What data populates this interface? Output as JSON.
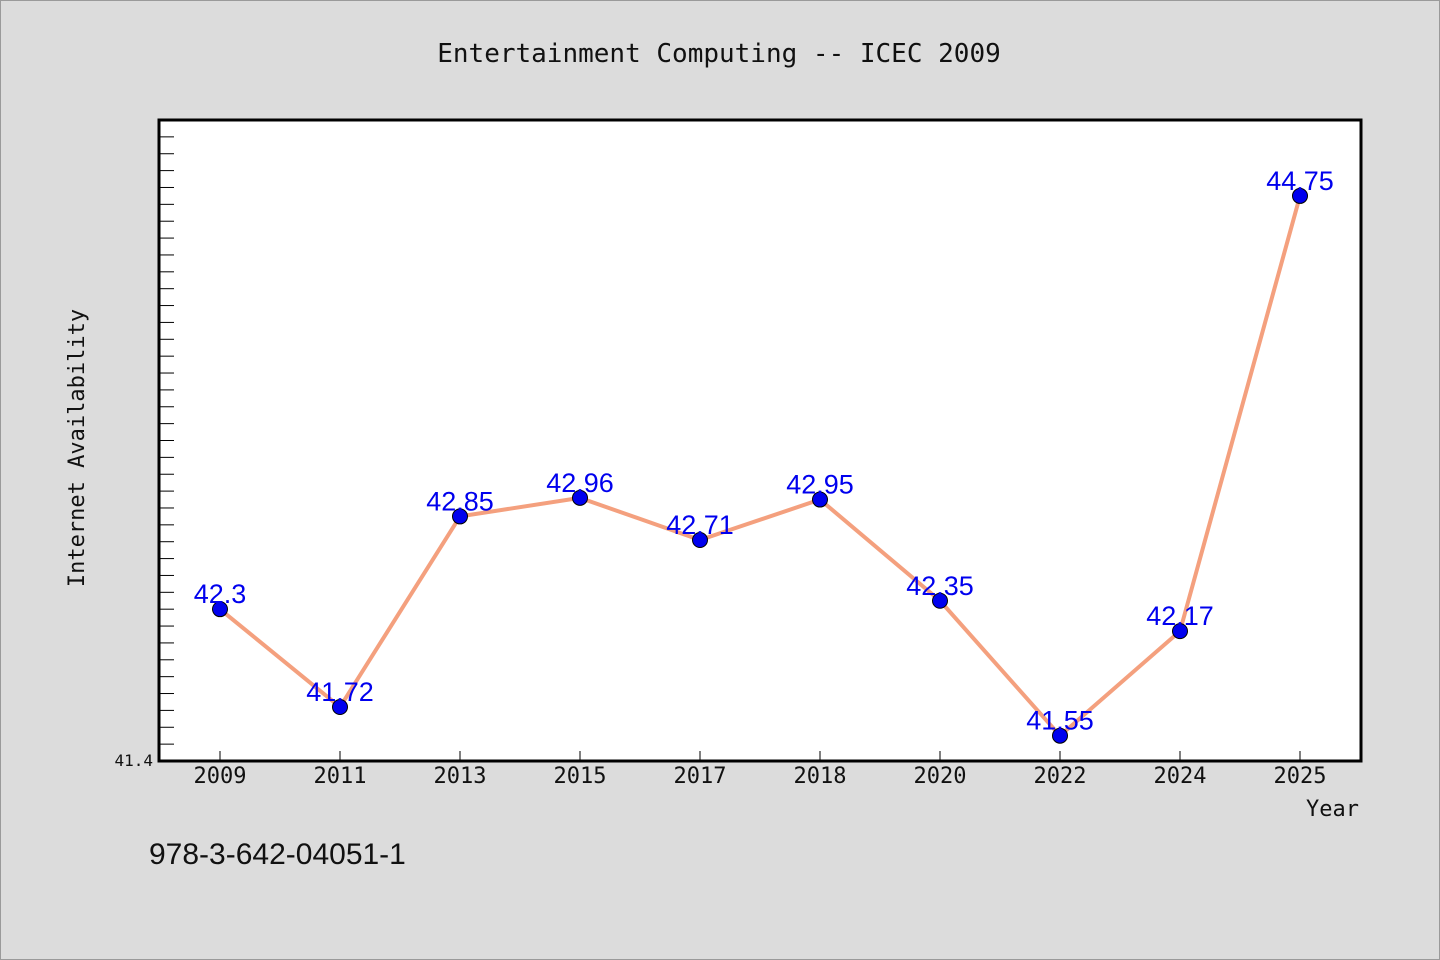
{
  "chart_data": {
    "type": "line",
    "title": "Entertainment Computing -- ICEC 2009",
    "xlabel": "Year",
    "ylabel": "Internet Availability",
    "categories": [
      "2009",
      "2011",
      "2013",
      "2015",
      "2017",
      "2018",
      "2020",
      "2022",
      "2024",
      "2025"
    ],
    "values": [
      42.3,
      41.72,
      42.85,
      42.96,
      42.71,
      42.95,
      42.35,
      41.55,
      42.17,
      44.75
    ],
    "data_labels": [
      "42.3",
      "41.72",
      "42.85",
      "42.96",
      "42.71",
      "42.95",
      "42.35",
      "41.55",
      "42.17",
      "44.75"
    ],
    "ylim": [
      41.4,
      45.2
    ],
    "yticks_labeled": [
      "41.4"
    ],
    "grid": false,
    "line_color": "#f4a07e",
    "marker_color": "#0000ee",
    "label_color": "#0000ee"
  },
  "footer": {
    "isbn": "978-3-642-04051-1"
  }
}
